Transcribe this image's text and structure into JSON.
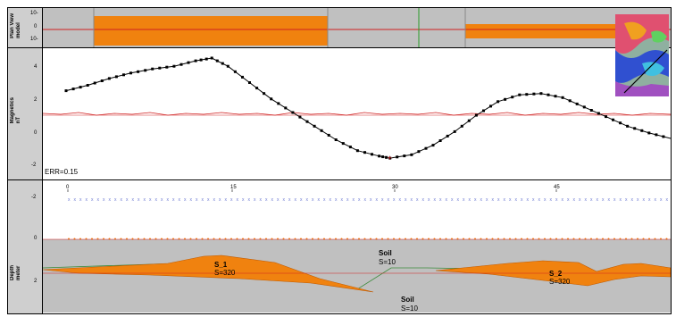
{
  "panels": {
    "top": {
      "label": "Plan View\nmodel",
      "ticks": [
        "10-",
        "0",
        "10-"
      ]
    },
    "magnetic": {
      "label": "Magnetics\nnT",
      "ticks": [
        "4",
        "2",
        "0",
        "-2"
      ],
      "error_text": "ERR=0.15"
    },
    "depth": {
      "label": "Depth\nmeter",
      "ticks": [
        "-2",
        "0",
        "2"
      ],
      "x_ticks": [
        "0",
        "15",
        "30",
        "45"
      ],
      "bodies": [
        {
          "name": "S_1",
          "susceptibility": "S=320"
        },
        {
          "name": "S_2",
          "susceptibility": "S=320"
        }
      ],
      "soil_labels": [
        {
          "name": "Soil",
          "susceptibility": "S=10"
        },
        {
          "name": "Soil",
          "susceptibility": "S=10"
        }
      ]
    }
  },
  "colors": {
    "orange": "#f0820f",
    "panel_gray": "#c0c0c0",
    "label_gray": "#cfcfcf",
    "observed": "#000000",
    "model_line": "#000000",
    "red_line": "#d02020",
    "blue_markers": "#6a78d0"
  },
  "icons": {
    "thumbnail": "magnetic-map-thumbnail"
  },
  "chart_data": {
    "type": "line",
    "title": "",
    "xlabel": "",
    "ylabel": "Magnetics nT",
    "x_ticks": [
      0,
      15,
      30,
      45
    ],
    "ylim": [
      -2.4,
      5.8
    ],
    "series": [
      {
        "x": [
          0,
          2,
          4,
          6,
          8,
          10,
          12,
          13.5,
          15,
          17,
          19,
          21,
          23,
          25,
          27,
          29,
          30,
          32,
          34,
          36,
          38,
          40,
          42,
          44,
          46,
          48,
          50,
          52,
          54,
          56
        ],
        "values": [
          3.2,
          3.6,
          4.1,
          4.5,
          4.8,
          5.0,
          5.4,
          5.6,
          5.0,
          3.8,
          2.6,
          1.6,
          0.6,
          -0.4,
          -1.2,
          -1.6,
          -1.75,
          -1.5,
          -0.8,
          0.2,
          1.4,
          2.4,
          2.9,
          3.0,
          2.7,
          2.0,
          1.3,
          0.6,
          0.1,
          -0.3
        ]
      }
    ]
  }
}
